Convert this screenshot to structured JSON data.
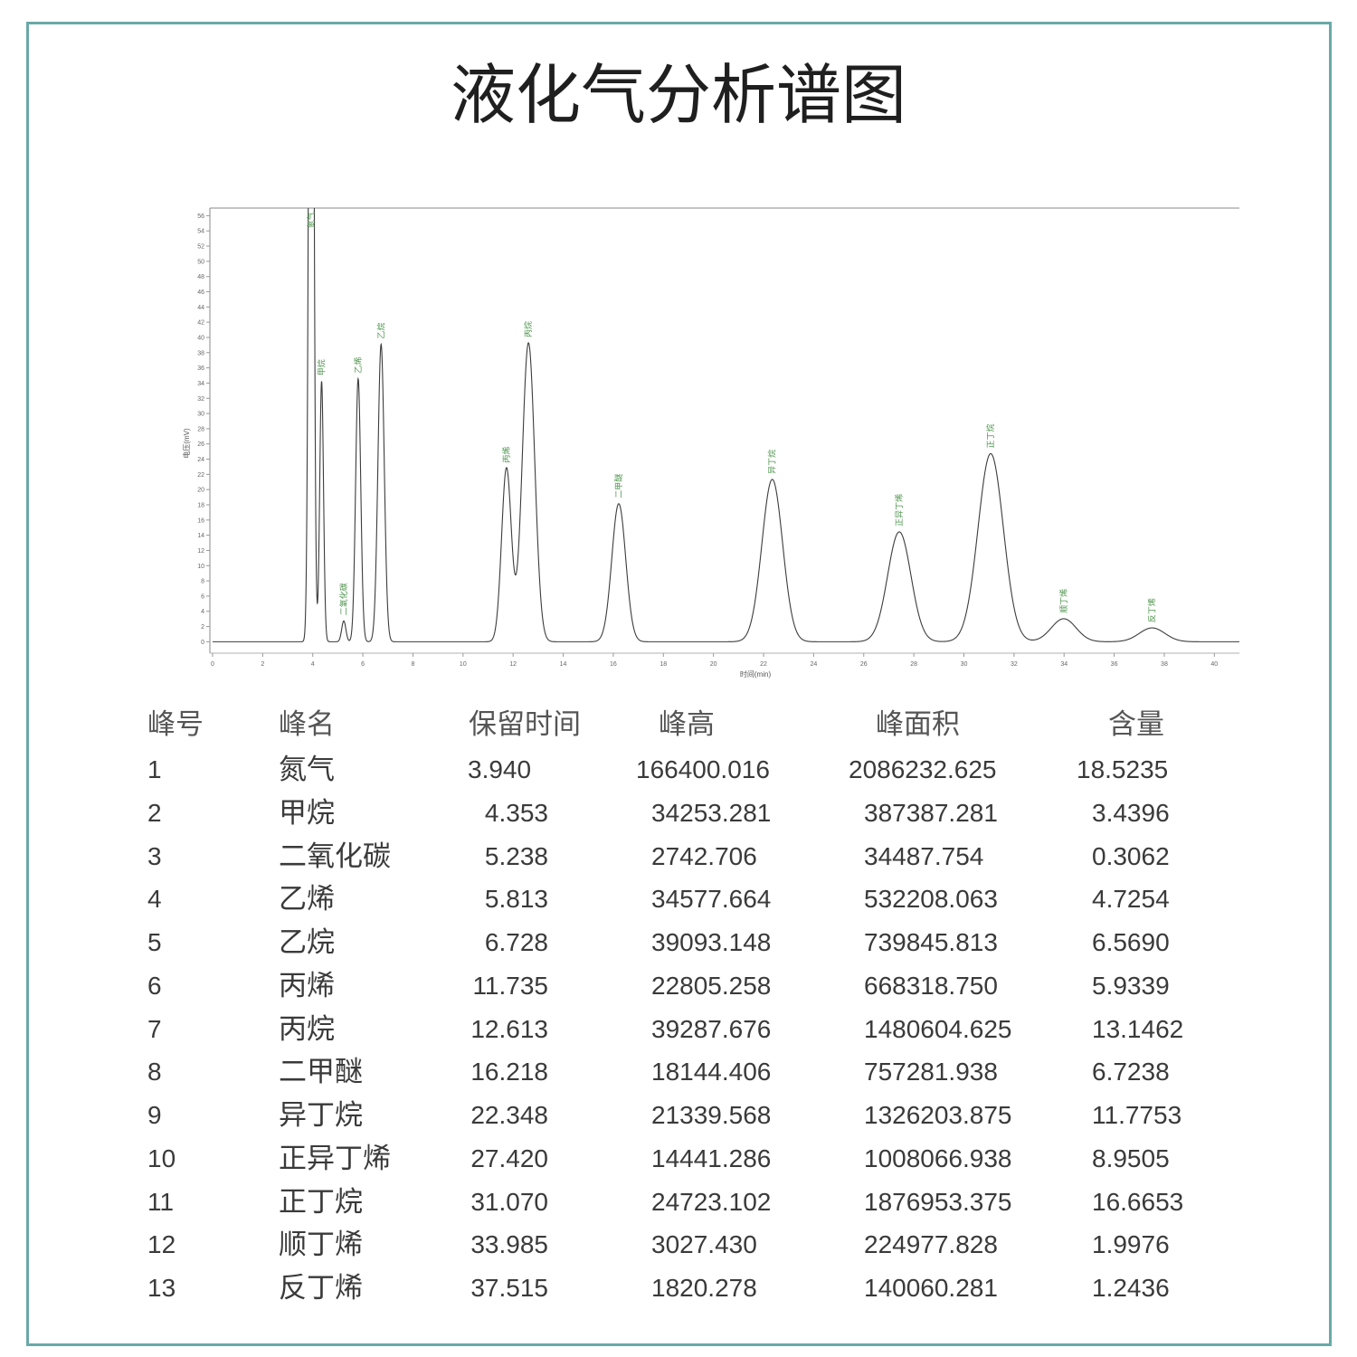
{
  "title": "液化气分析谱图",
  "chart_data": {
    "type": "line",
    "title": "",
    "xlabel": "时间(min)",
    "ylabel": "电压(mV)",
    "xlim": [
      0,
      41
    ],
    "ylim": [
      -1.5,
      57
    ],
    "grid": false,
    "xticks": [
      0,
      2,
      4,
      6,
      8,
      10,
      12,
      14,
      16,
      18,
      20,
      22,
      24,
      26,
      28,
      30,
      32,
      34,
      36,
      38,
      40
    ],
    "yticks": [
      0,
      2,
      4,
      6,
      8,
      10,
      12,
      14,
      16,
      18,
      20,
      22,
      24,
      26,
      28,
      30,
      32,
      34,
      36,
      38,
      40,
      42,
      44,
      46,
      48,
      50,
      52,
      54,
      56
    ],
    "peaks": [
      {
        "name": "氮气",
        "x": 3.94,
        "y": 166.4
      },
      {
        "name": "甲烷",
        "x": 4.353,
        "y": 34.253
      },
      {
        "name": "二氧化碳",
        "x": 5.238,
        "y": 2.743
      },
      {
        "name": "乙烯",
        "x": 5.813,
        "y": 34.578
      },
      {
        "name": "乙烷",
        "x": 6.728,
        "y": 39.093
      },
      {
        "name": "丙烯",
        "x": 11.735,
        "y": 22.805
      },
      {
        "name": "丙烷",
        "x": 12.613,
        "y": 39.288
      },
      {
        "name": "二甲醚",
        "x": 16.218,
        "y": 18.144
      },
      {
        "name": "异丁烷",
        "x": 22.348,
        "y": 21.34
      },
      {
        "name": "正异丁烯",
        "x": 27.42,
        "y": 14.441
      },
      {
        "name": "正丁烷",
        "x": 31.07,
        "y": 24.723
      },
      {
        "name": "顺丁烯",
        "x": 33.985,
        "y": 3.027
      },
      {
        "name": "反丁烯",
        "x": 37.515,
        "y": 1.82
      }
    ]
  },
  "table": {
    "headers": [
      "峰号",
      "峰名",
      "保留时间",
      "峰高",
      "峰面积",
      "含量"
    ],
    "rows": [
      [
        "1",
        "氮气",
        "3.940",
        "166400.016",
        "2086232.625",
        "18.5235"
      ],
      [
        "2",
        "甲烷",
        "4.353",
        "34253.281",
        "387387.281",
        "3.4396"
      ],
      [
        "3",
        "二氧化碳",
        "5.238",
        "2742.706",
        "34487.754",
        "0.3062"
      ],
      [
        "4",
        "乙烯",
        "5.813",
        "34577.664",
        "532208.063",
        "4.7254"
      ],
      [
        "5",
        "乙烷",
        "6.728",
        "39093.148",
        "739845.813",
        "6.5690"
      ],
      [
        "6",
        "丙烯",
        "11.735",
        "22805.258",
        "668318.750",
        "5.9339"
      ],
      [
        "7",
        "丙烷",
        "12.613",
        "39287.676",
        "1480604.625",
        "13.1462"
      ],
      [
        "8",
        "二甲醚",
        "16.218",
        "18144.406",
        "757281.938",
        "6.7238"
      ],
      [
        "9",
        "异丁烷",
        "22.348",
        "21339.568",
        "1326203.875",
        "11.7753"
      ],
      [
        "10",
        "正异丁烯",
        "27.420",
        "14441.286",
        "1008066.938",
        "8.9505"
      ],
      [
        "11",
        "正丁烷",
        "31.070",
        "24723.102",
        "1876953.375",
        "16.6653"
      ],
      [
        "12",
        "顺丁烯",
        "33.985",
        "3027.430",
        "224977.828",
        "1.9976"
      ],
      [
        "13",
        "反丁烯",
        "37.515",
        "1820.278",
        "140060.281",
        "1.2436"
      ]
    ]
  }
}
